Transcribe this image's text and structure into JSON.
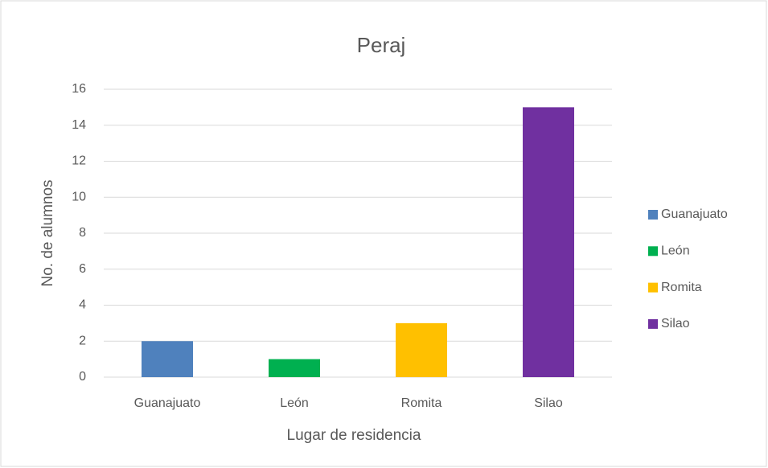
{
  "chart_data": {
    "type": "bar",
    "title": "Peraj",
    "x_label": "Lugar de residencia",
    "y_label": "No. de alumnos",
    "categories": [
      "Guanajuato",
      "León",
      "Romita",
      "Silao"
    ],
    "values": [
      2,
      1,
      3,
      15
    ],
    "colors": [
      "#4f81bd",
      "#00b050",
      "#ffc000",
      "#7030a0"
    ],
    "ylim": [
      0,
      16
    ],
    "yticks": [
      0,
      2,
      4,
      6,
      8,
      10,
      12,
      14,
      16
    ],
    "grid": true,
    "legend": "right"
  }
}
